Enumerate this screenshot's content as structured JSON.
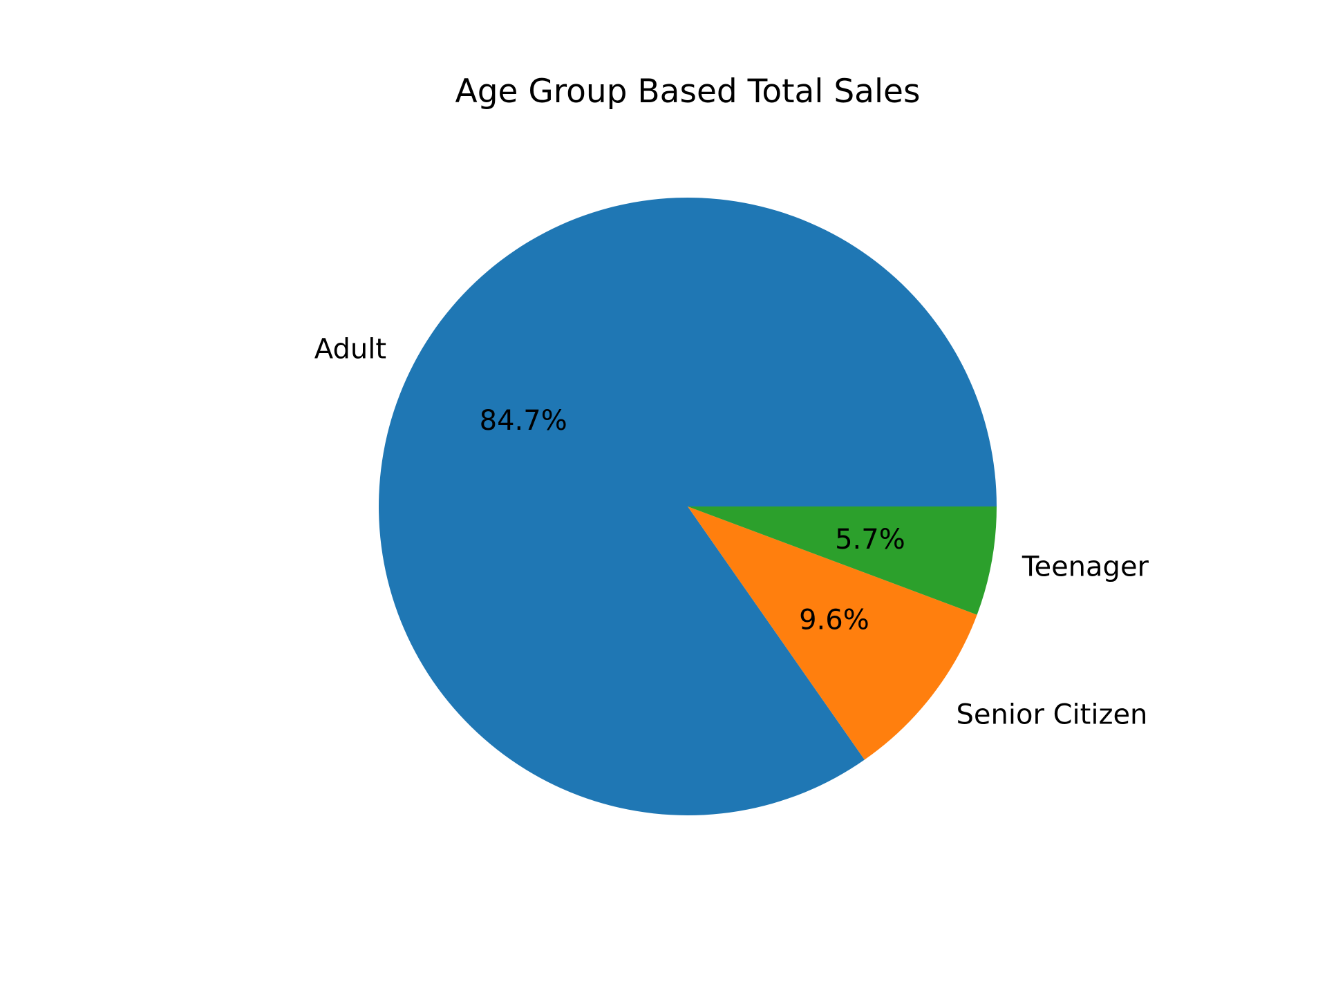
{
  "chart_data": {
    "type": "pie",
    "title": "Age Group Based Total Sales",
    "start_angle": 0,
    "direction": "counterclockwise",
    "slices": [
      {
        "label": "Adult",
        "value": 84.7,
        "pct_label": "84.7%",
        "color": "#1f77b4"
      },
      {
        "label": "Senior Citizen",
        "value": 9.6,
        "pct_label": "9.6%",
        "color": "#ff7f0e"
      },
      {
        "label": "Teenager",
        "value": 5.7,
        "pct_label": "5.7%",
        "color": "#2ca02c"
      }
    ]
  }
}
